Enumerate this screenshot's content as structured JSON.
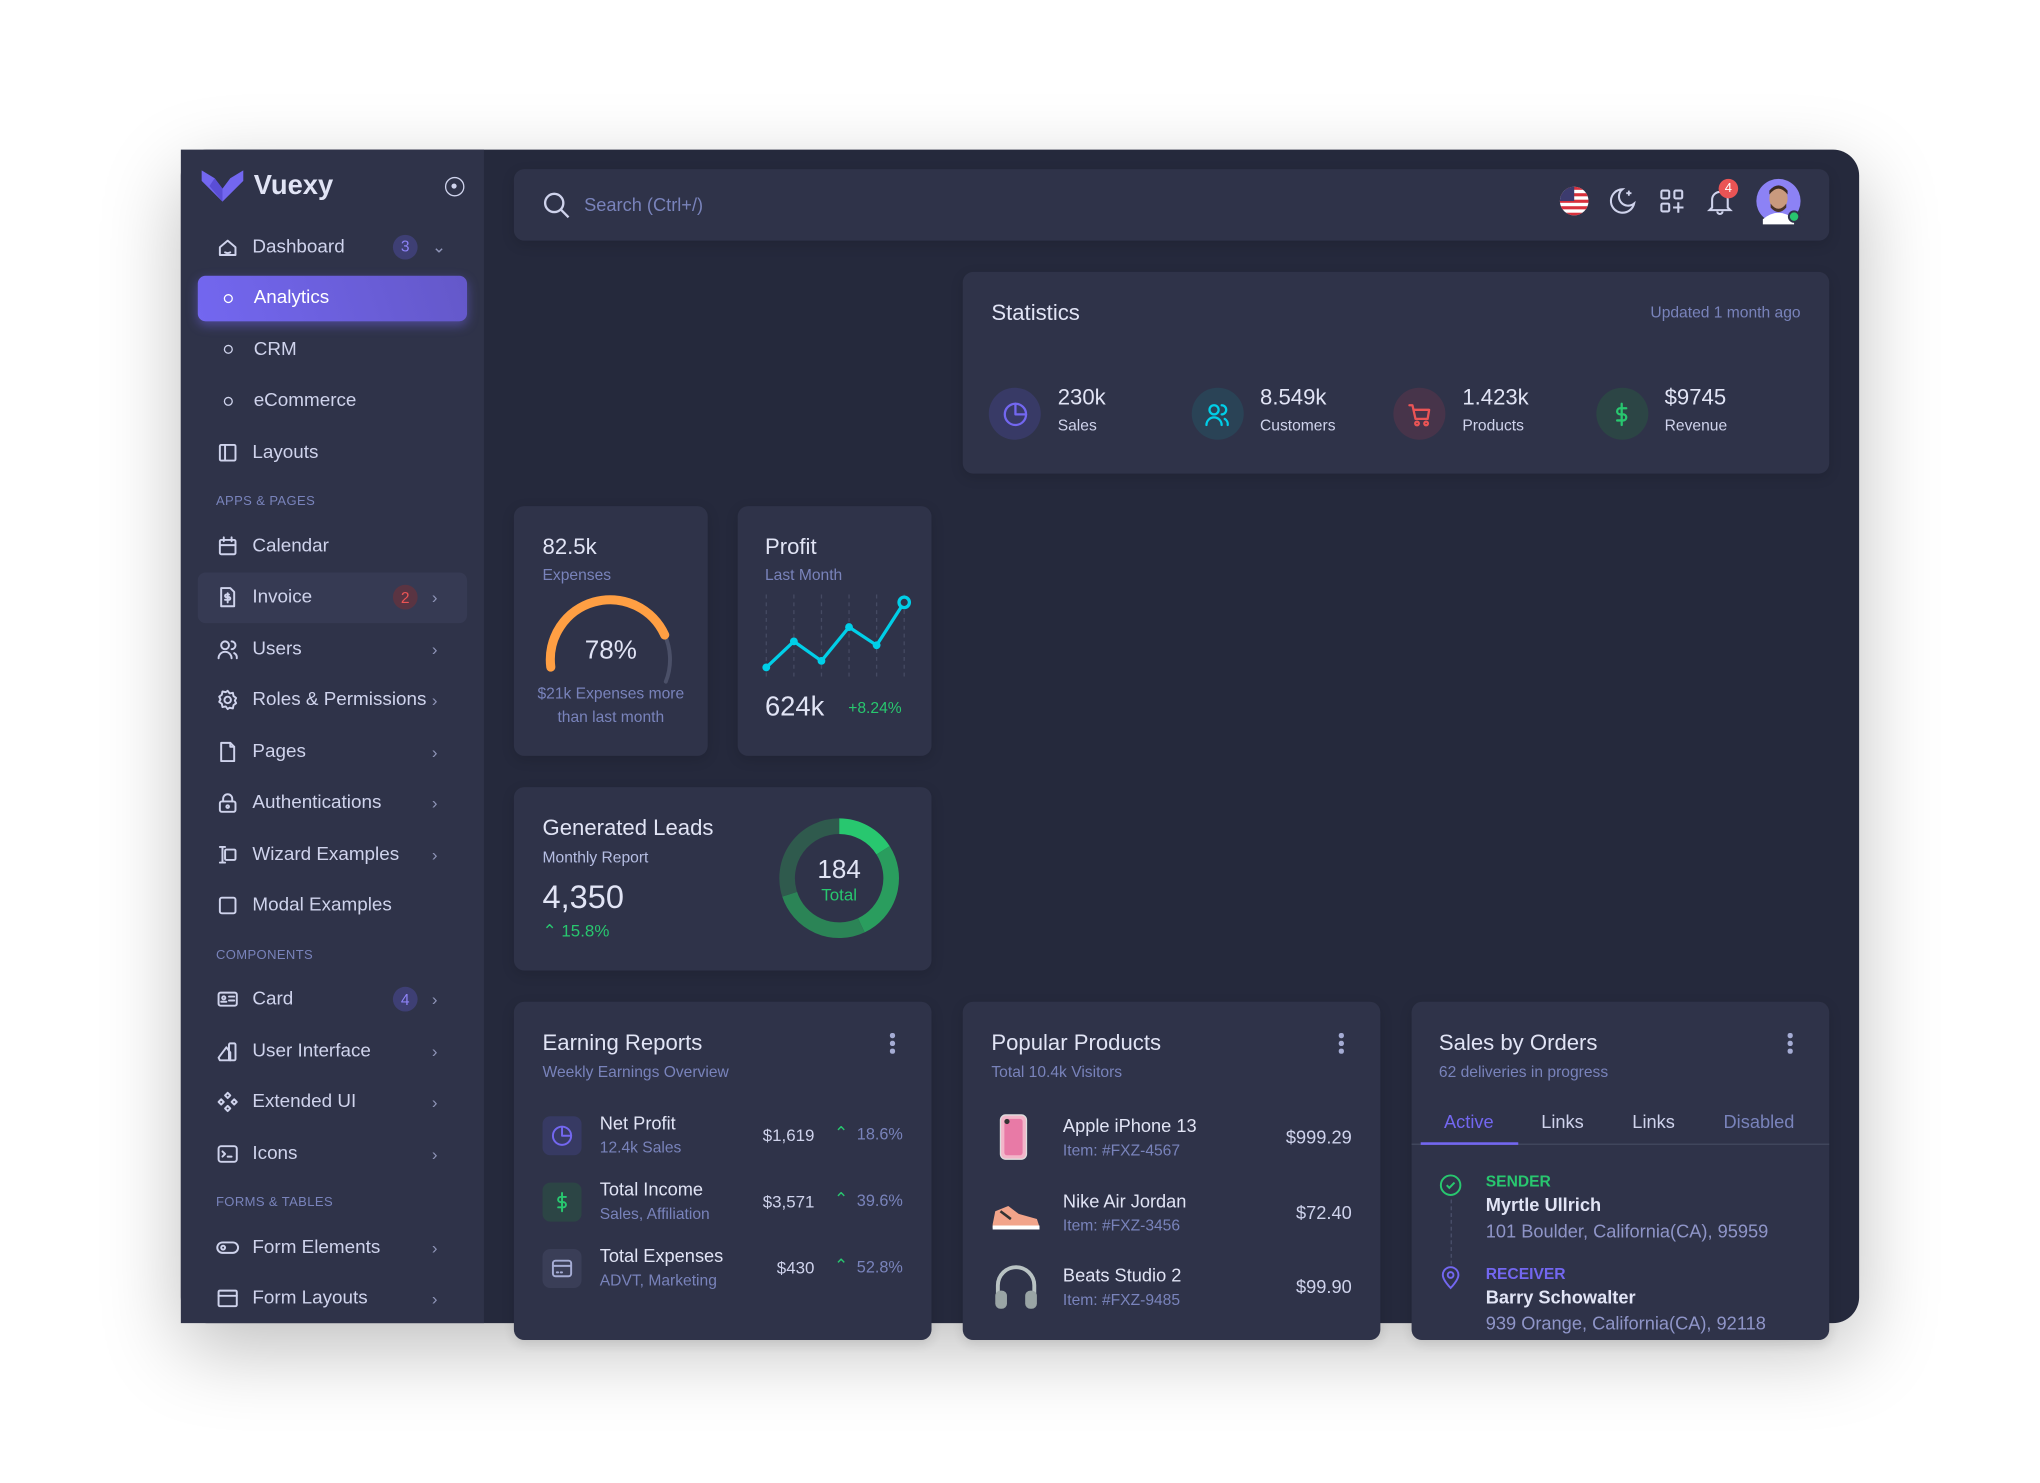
{
  "app": {
    "name": "Vuexy",
    "accent": "#7367f0"
  },
  "sidebar": {
    "items": [
      {
        "type": "item",
        "label": "Dashboard",
        "icon": "home-icon",
        "badge": "3",
        "badge_color": "purple",
        "chevron": "down"
      },
      {
        "type": "sub",
        "label": "Analytics",
        "active": true
      },
      {
        "type": "sub",
        "label": "CRM"
      },
      {
        "type": "sub",
        "label": "eCommerce"
      },
      {
        "type": "item",
        "label": "Layouts",
        "icon": "layout-icon"
      },
      {
        "type": "section",
        "label": "APPS & PAGES"
      },
      {
        "type": "item",
        "label": "Calendar",
        "icon": "calendar-icon"
      },
      {
        "type": "item",
        "label": "Invoice",
        "icon": "invoice-icon",
        "badge": "2",
        "badge_color": "red",
        "chevron": "right",
        "hover": true
      },
      {
        "type": "item",
        "label": "Users",
        "icon": "users-icon",
        "chevron": "right"
      },
      {
        "type": "item",
        "label": "Roles & Permissions",
        "icon": "settings-icon",
        "chevron": "right"
      },
      {
        "type": "item",
        "label": "Pages",
        "icon": "file-icon",
        "chevron": "right"
      },
      {
        "type": "item",
        "label": "Authentications",
        "icon": "lock-icon",
        "chevron": "right"
      },
      {
        "type": "item",
        "label": "Wizard Examples",
        "icon": "wizard-icon",
        "chevron": "right"
      },
      {
        "type": "item",
        "label": "Modal Examples",
        "icon": "square-icon"
      },
      {
        "type": "section",
        "label": "COMPONENTS"
      },
      {
        "type": "item",
        "label": "Card",
        "icon": "id-card-icon",
        "badge": "4",
        "badge_color": "purple",
        "chevron": "right"
      },
      {
        "type": "item",
        "label": "User Interface",
        "icon": "ui-icon",
        "chevron": "right"
      },
      {
        "type": "item",
        "label": "Extended UI",
        "icon": "components-icon",
        "chevron": "right"
      },
      {
        "type": "item",
        "label": "Icons",
        "icon": "terminal-icon",
        "chevron": "right"
      },
      {
        "type": "section",
        "label": "FORMS & TABLES"
      },
      {
        "type": "item",
        "label": "Form Elements",
        "icon": "toggle-icon",
        "chevron": "right"
      },
      {
        "type": "item",
        "label": "Form Layouts",
        "icon": "form-layout-icon",
        "chevron": "right"
      }
    ]
  },
  "navbar": {
    "search_placeholder": "Search (Ctrl+/)",
    "notifications": "4"
  },
  "statistics": {
    "title": "Statistics",
    "updated": "Updated 1 month ago",
    "items": [
      {
        "value": "230k",
        "label": "Sales",
        "icon": "chart-pie-icon",
        "color": "#7367f0",
        "bg": "#383a66"
      },
      {
        "value": "8.549k",
        "label": "Customers",
        "icon": "users-icon",
        "color": "#00cfe8",
        "bg": "#2a4356"
      },
      {
        "value": "1.423k",
        "label": "Products",
        "icon": "cart-icon",
        "color": "#ea5455",
        "bg": "#47344a"
      },
      {
        "value": "$9745",
        "label": "Revenue",
        "icon": "dollar-icon",
        "color": "#28c76f",
        "bg": "#2c4545"
      }
    ]
  },
  "expenses": {
    "value": "82.5k",
    "label": "Expenses",
    "percent": 78,
    "percent_label": "78%",
    "caption1": "$21k Expenses more",
    "caption2": "than last month",
    "color": "#ff9f43"
  },
  "profit": {
    "title": "Profit",
    "subtitle": "Last Month",
    "value": "624k",
    "change": "+8.24%",
    "color": "#00cfe8",
    "chart_data": {
      "type": "line",
      "values": [
        0,
        40,
        10,
        62,
        34,
        100
      ]
    }
  },
  "leads": {
    "title": "Generated Leads",
    "subtitle": "Monthly Report",
    "value": "4,350",
    "change": "15.8%",
    "donut_total": "184",
    "donut_label": "Total",
    "chart_data": {
      "type": "pie",
      "values": [
        16,
        27,
        27,
        30
      ],
      "colors": [
        "#28c76f",
        "#2a9d5e",
        "#2b8456",
        "#2f5a4d"
      ]
    }
  },
  "earning": {
    "title": "Earning Reports",
    "subtitle": "Weekly Earnings Overview",
    "rows": [
      {
        "name": "Net Profit",
        "sub": "12.4k Sales",
        "amount": "$1,619",
        "pct": "18.6%",
        "icon": "chart-pie-icon",
        "color": "#7367f0",
        "bg": "#373a63"
      },
      {
        "name": "Total Income",
        "sub": "Sales, Affiliation",
        "amount": "$3,571",
        "pct": "39.6%",
        "icon": "dollar-icon",
        "color": "#28c76f",
        "bg": "#2c4545"
      },
      {
        "name": "Total Expenses",
        "sub": "ADVT, Marketing",
        "amount": "$430",
        "pct": "52.8%",
        "icon": "credit-card-icon",
        "color": "#a5acd4",
        "bg": "#3a3e57"
      }
    ]
  },
  "popular": {
    "title": "Popular Products",
    "subtitle": "Total 10.4k Visitors",
    "rows": [
      {
        "name": "Apple iPhone 13",
        "item": "Item: #FXZ-4567",
        "price": "$999.29",
        "image": "phone"
      },
      {
        "name": "Nike Air Jordan",
        "item": "Item: #FXZ-3456",
        "price": "$72.40",
        "image": "shoe"
      },
      {
        "name": "Beats Studio 2",
        "item": "Item: #FXZ-9485",
        "price": "$99.90",
        "image": "headphones"
      }
    ]
  },
  "orders": {
    "title": "Sales by Orders",
    "subtitle": "62 deliveries in progress",
    "tabs": [
      "Active",
      "Links",
      "Links",
      "Disabled"
    ],
    "sender": {
      "label": "SENDER",
      "name": "Myrtle Ullrich",
      "address": "101 Boulder, California(CA), 95959"
    },
    "receiver": {
      "label": "RECEIVER",
      "name": "Barry Schowalter",
      "address": "939 Orange, California(CA), 92118"
    }
  }
}
